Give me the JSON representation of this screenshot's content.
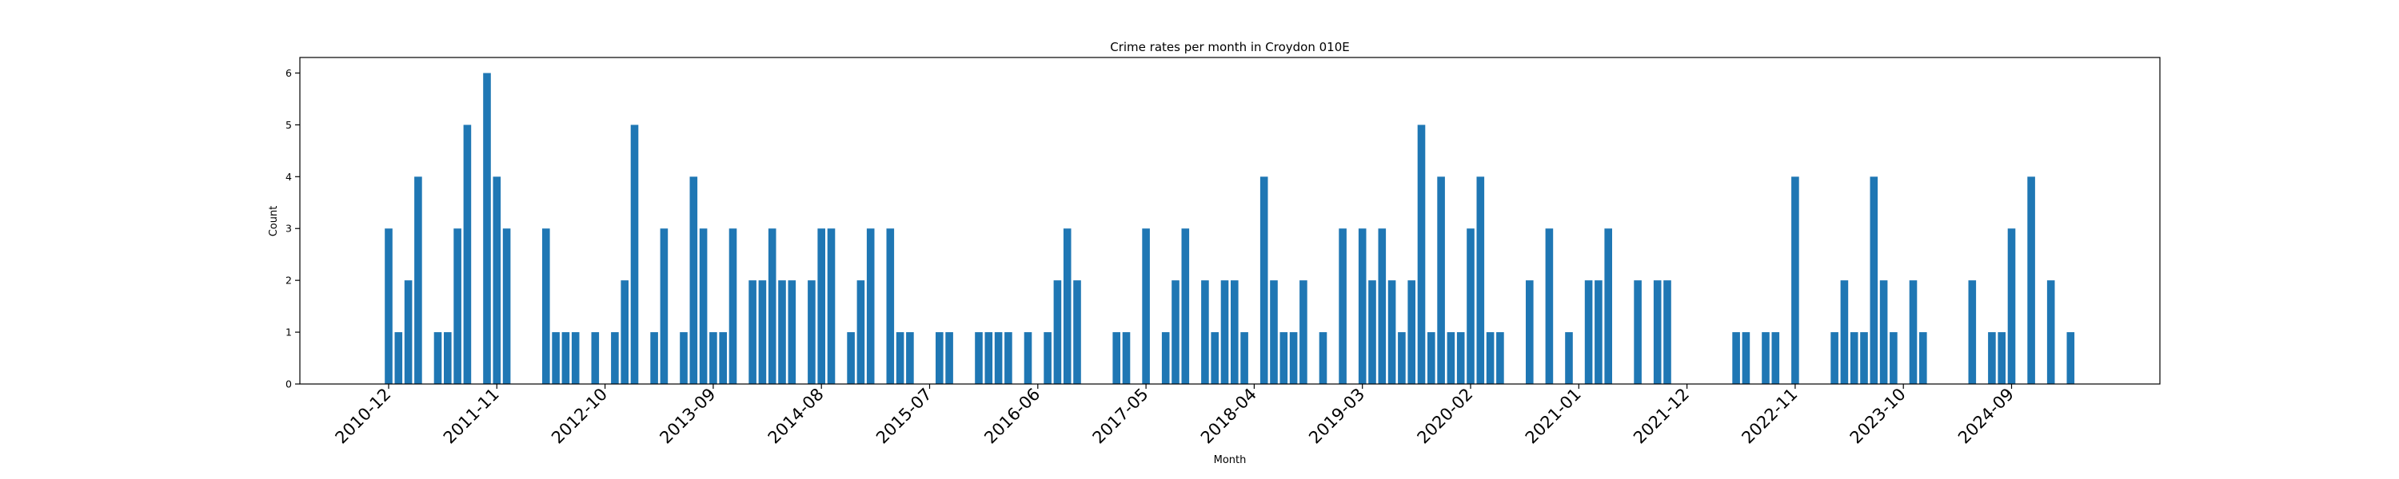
{
  "chart_data": {
    "type": "bar",
    "title": "Crime rates per month in Croydon 010E",
    "xlabel": "Month",
    "ylabel": "Count",
    "ylim": [
      0,
      6.3
    ],
    "yticks": [
      0,
      1,
      2,
      3,
      4,
      5,
      6
    ],
    "grid": false,
    "legend": "none",
    "bar_color": "#1f77b4",
    "start_month": "2010-12",
    "month_count": 172,
    "xtick_labels": [
      "2010-12",
      "2011-11",
      "2012-10",
      "2013-09",
      "2014-08",
      "2015-07",
      "2016-06",
      "2017-05",
      "2018-04",
      "2019-03",
      "2020-02",
      "2021-01",
      "2021-12",
      "2022-11",
      "2023-10",
      "2024-09"
    ],
    "bars": [
      {
        "x": "2010-12",
        "y": 3
      },
      {
        "x": "2011-01",
        "y": 1
      },
      {
        "x": "2011-02",
        "y": 2
      },
      {
        "x": "2011-03",
        "y": 4
      },
      {
        "x": "2011-05",
        "y": 1
      },
      {
        "x": "2011-06",
        "y": 1
      },
      {
        "x": "2011-07",
        "y": 3
      },
      {
        "x": "2011-08",
        "y": 5
      },
      {
        "x": "2011-10",
        "y": 6
      },
      {
        "x": "2011-11",
        "y": 4
      },
      {
        "x": "2011-12",
        "y": 3
      },
      {
        "x": "2012-04",
        "y": 3
      },
      {
        "x": "2012-05",
        "y": 1
      },
      {
        "x": "2012-06",
        "y": 1
      },
      {
        "x": "2012-07",
        "y": 1
      },
      {
        "x": "2012-09",
        "y": 1
      },
      {
        "x": "2012-11",
        "y": 1
      },
      {
        "x": "2012-12",
        "y": 2
      },
      {
        "x": "2013-01",
        "y": 5
      },
      {
        "x": "2013-03",
        "y": 1
      },
      {
        "x": "2013-04",
        "y": 3
      },
      {
        "x": "2013-06",
        "y": 1
      },
      {
        "x": "2013-07",
        "y": 4
      },
      {
        "x": "2013-08",
        "y": 3
      },
      {
        "x": "2013-09",
        "y": 1
      },
      {
        "x": "2013-10",
        "y": 1
      },
      {
        "x": "2013-11",
        "y": 3
      },
      {
        "x": "2014-01",
        "y": 2
      },
      {
        "x": "2014-02",
        "y": 2
      },
      {
        "x": "2014-03",
        "y": 3
      },
      {
        "x": "2014-04",
        "y": 2
      },
      {
        "x": "2014-05",
        "y": 2
      },
      {
        "x": "2014-07",
        "y": 2
      },
      {
        "x": "2014-08",
        "y": 3
      },
      {
        "x": "2014-09",
        "y": 3
      },
      {
        "x": "2014-11",
        "y": 1
      },
      {
        "x": "2014-12",
        "y": 2
      },
      {
        "x": "2015-01",
        "y": 3
      },
      {
        "x": "2015-03",
        "y": 3
      },
      {
        "x": "2015-04",
        "y": 1
      },
      {
        "x": "2015-05",
        "y": 1
      },
      {
        "x": "2015-08",
        "y": 1
      },
      {
        "x": "2015-09",
        "y": 1
      },
      {
        "x": "2015-12",
        "y": 1
      },
      {
        "x": "2016-01",
        "y": 1
      },
      {
        "x": "2016-02",
        "y": 1
      },
      {
        "x": "2016-03",
        "y": 1
      },
      {
        "x": "2016-05",
        "y": 1
      },
      {
        "x": "2016-07",
        "y": 1
      },
      {
        "x": "2016-08",
        "y": 2
      },
      {
        "x": "2016-09",
        "y": 3
      },
      {
        "x": "2016-10",
        "y": 2
      },
      {
        "x": "2017-02",
        "y": 1
      },
      {
        "x": "2017-03",
        "y": 1
      },
      {
        "x": "2017-05",
        "y": 3
      },
      {
        "x": "2017-07",
        "y": 1
      },
      {
        "x": "2017-08",
        "y": 2
      },
      {
        "x": "2017-09",
        "y": 3
      },
      {
        "x": "2017-11",
        "y": 2
      },
      {
        "x": "2017-12",
        "y": 1
      },
      {
        "x": "2018-01",
        "y": 2
      },
      {
        "x": "2018-02",
        "y": 2
      },
      {
        "x": "2018-03",
        "y": 1
      },
      {
        "x": "2018-05",
        "y": 4
      },
      {
        "x": "2018-06",
        "y": 2
      },
      {
        "x": "2018-07",
        "y": 1
      },
      {
        "x": "2018-08",
        "y": 1
      },
      {
        "x": "2018-09",
        "y": 2
      },
      {
        "x": "2018-11",
        "y": 1
      },
      {
        "x": "2019-01",
        "y": 3
      },
      {
        "x": "2019-03",
        "y": 3
      },
      {
        "x": "2019-04",
        "y": 2
      },
      {
        "x": "2019-05",
        "y": 3
      },
      {
        "x": "2019-06",
        "y": 2
      },
      {
        "x": "2019-07",
        "y": 1
      },
      {
        "x": "2019-08",
        "y": 2
      },
      {
        "x": "2019-09",
        "y": 5
      },
      {
        "x": "2019-10",
        "y": 1
      },
      {
        "x": "2019-11",
        "y": 4
      },
      {
        "x": "2019-12",
        "y": 1
      },
      {
        "x": "2020-01",
        "y": 1
      },
      {
        "x": "2020-02",
        "y": 3
      },
      {
        "x": "2020-03",
        "y": 4
      },
      {
        "x": "2020-04",
        "y": 1
      },
      {
        "x": "2020-05",
        "y": 1
      },
      {
        "x": "2020-08",
        "y": 2
      },
      {
        "x": "2020-10",
        "y": 3
      },
      {
        "x": "2020-12",
        "y": 1
      },
      {
        "x": "2021-02",
        "y": 2
      },
      {
        "x": "2021-03",
        "y": 2
      },
      {
        "x": "2021-04",
        "y": 3
      },
      {
        "x": "2021-07",
        "y": 2
      },
      {
        "x": "2021-09",
        "y": 2
      },
      {
        "x": "2021-10",
        "y": 2
      },
      {
        "x": "2022-05",
        "y": 1
      },
      {
        "x": "2022-06",
        "y": 1
      },
      {
        "x": "2022-08",
        "y": 1
      },
      {
        "x": "2022-09",
        "y": 1
      },
      {
        "x": "2022-11",
        "y": 4
      },
      {
        "x": "2023-03",
        "y": 1
      },
      {
        "x": "2023-04",
        "y": 2
      },
      {
        "x": "2023-05",
        "y": 1
      },
      {
        "x": "2023-06",
        "y": 1
      },
      {
        "x": "2023-07",
        "y": 4
      },
      {
        "x": "2023-08",
        "y": 2
      },
      {
        "x": "2023-09",
        "y": 1
      },
      {
        "x": "2023-11",
        "y": 2
      },
      {
        "x": "2023-12",
        "y": 1
      },
      {
        "x": "2024-05",
        "y": 2
      },
      {
        "x": "2024-07",
        "y": 1
      },
      {
        "x": "2024-08",
        "y": 1
      },
      {
        "x": "2024-09",
        "y": 3
      },
      {
        "x": "2024-11",
        "y": 4
      },
      {
        "x": "2025-01",
        "y": 2
      },
      {
        "x": "2025-03",
        "y": 1
      }
    ]
  }
}
